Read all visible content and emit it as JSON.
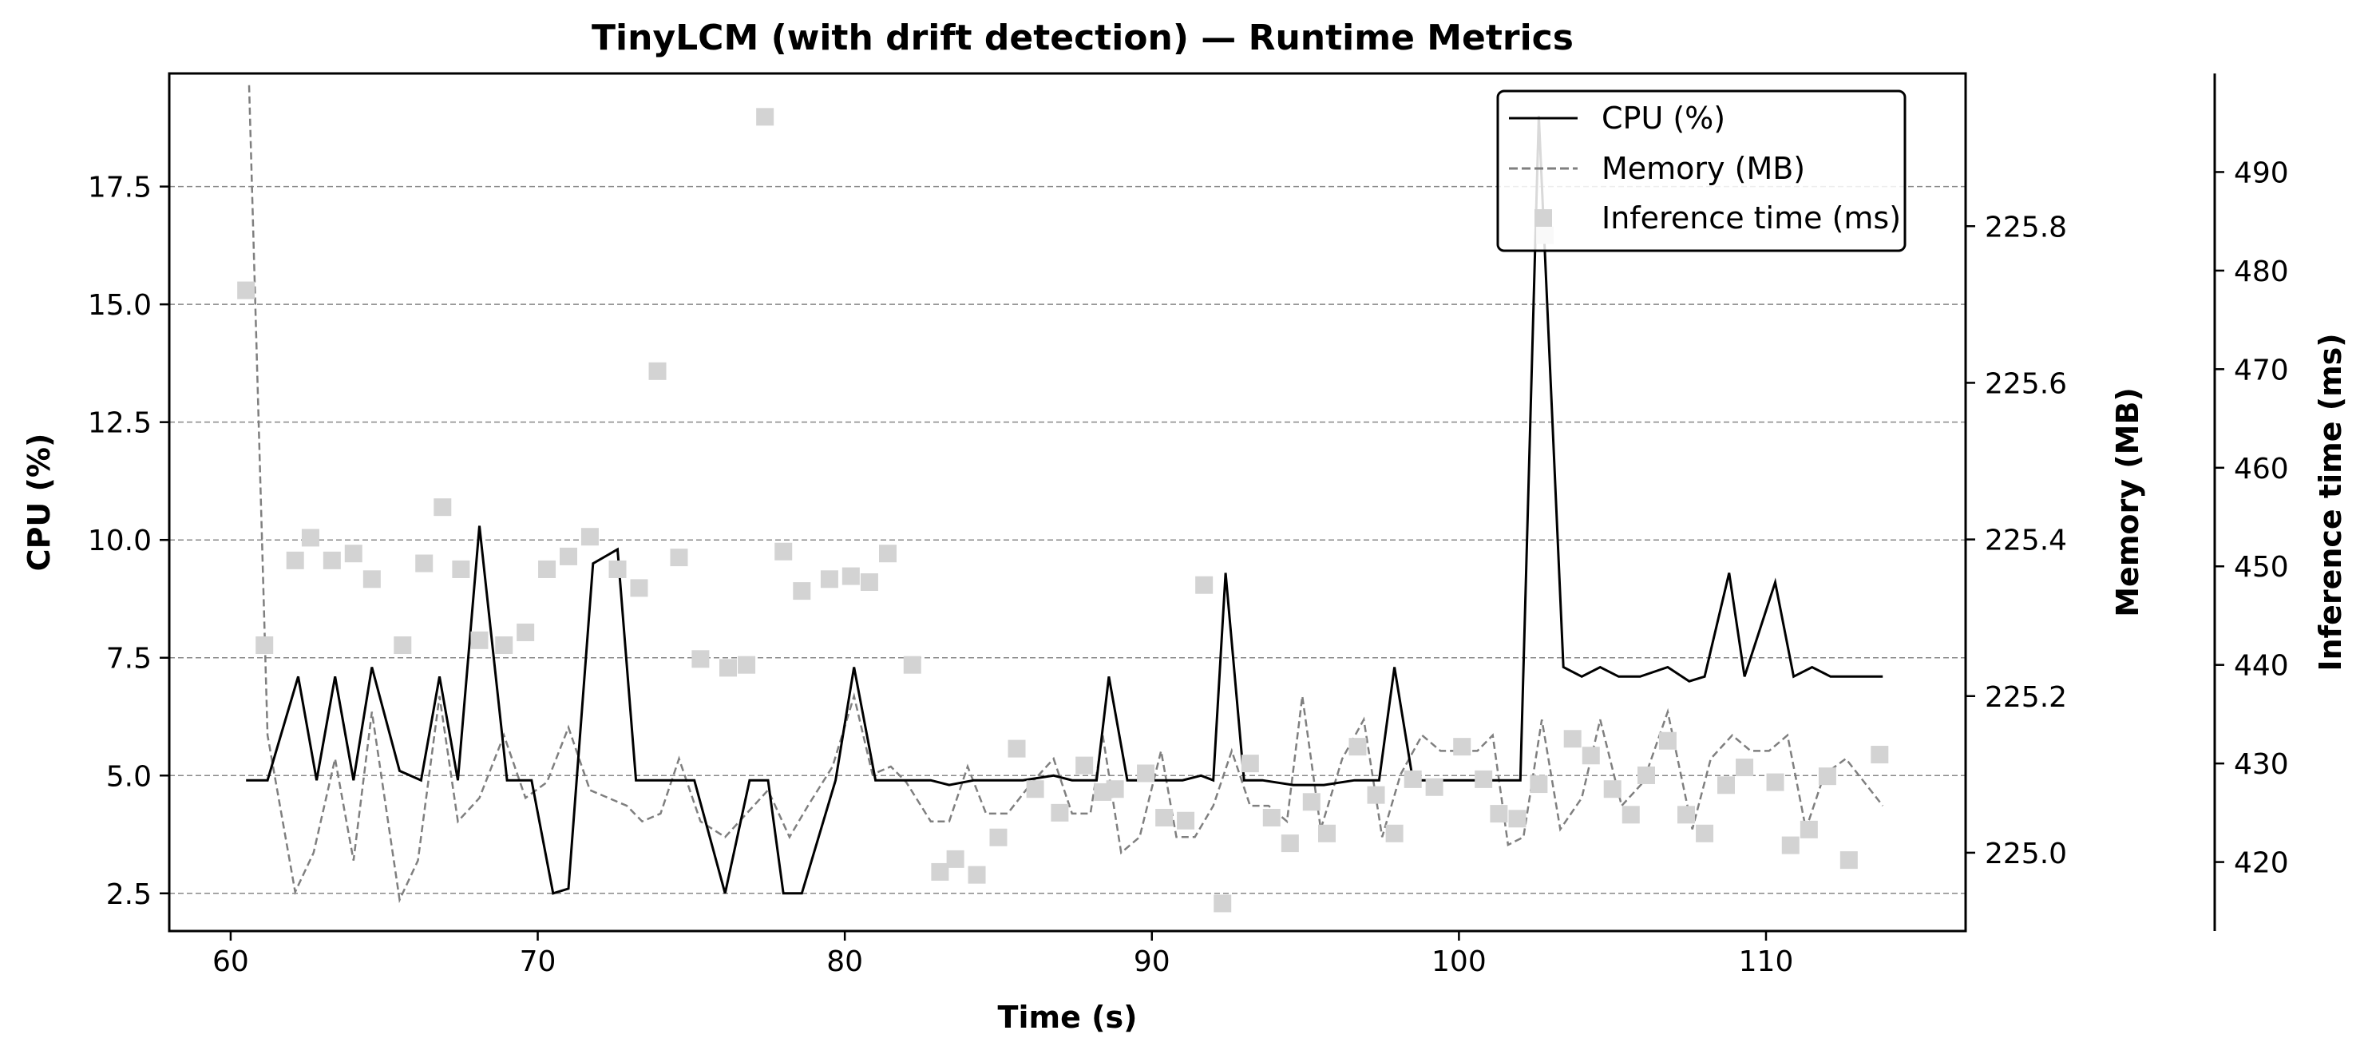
{
  "chart_data": {
    "type": "line",
    "title": "TinyLCM (with drift detection) — Runtime Metrics",
    "xlabel": "Time (s)",
    "xlim": [
      58.0,
      116.5
    ],
    "xticks": [
      60,
      70,
      80,
      90,
      100,
      110
    ],
    "grid": "horizontal dashed (CPU axis)",
    "legend_position": "top-right",
    "axes": {
      "cpu": {
        "label": "CPU (%)",
        "lim": [
          1.7,
          19.9
        ],
        "ticks": [
          "2.5",
          "5.0",
          "7.5",
          "10.0",
          "12.5",
          "15.0",
          "17.5"
        ],
        "tick_values": [
          2.5,
          5.0,
          7.5,
          10.0,
          12.5,
          15.0,
          17.5
        ],
        "side": "left"
      },
      "memory": {
        "label": "Memory (MB)",
        "lim": [
          224.9,
          225.995
        ],
        "ticks": [
          "225.0",
          "225.2",
          "225.4",
          "225.6",
          "225.8"
        ],
        "tick_values": [
          225.0,
          225.2,
          225.4,
          225.6,
          225.8
        ],
        "side": "right"
      },
      "inference": {
        "label": "Inference time (ms)",
        "lim": [
          413.0,
          500.0
        ],
        "ticks": [
          "420",
          "430",
          "440",
          "450",
          "460",
          "470",
          "480",
          "490"
        ],
        "tick_values": [
          420,
          430,
          440,
          450,
          460,
          470,
          480,
          490
        ],
        "side": "right-outer"
      }
    },
    "series": [
      {
        "name": "CPU (%)",
        "axis": "cpu",
        "style": "line",
        "color": "#000000",
        "points": [
          [
            60.5,
            4.9
          ],
          [
            61.2,
            4.9
          ],
          [
            62.2,
            7.1
          ],
          [
            62.8,
            4.9
          ],
          [
            63.4,
            7.1
          ],
          [
            64.0,
            4.9
          ],
          [
            64.6,
            7.3
          ],
          [
            65.5,
            5.1
          ],
          [
            66.2,
            4.9
          ],
          [
            66.8,
            7.1
          ],
          [
            67.4,
            4.9
          ],
          [
            68.1,
            10.3
          ],
          [
            69.0,
            4.9
          ],
          [
            69.8,
            4.9
          ],
          [
            70.5,
            2.5
          ],
          [
            71.0,
            2.6
          ],
          [
            71.8,
            9.5
          ],
          [
            72.6,
            9.8
          ],
          [
            73.2,
            4.9
          ],
          [
            73.7,
            4.9
          ],
          [
            74.5,
            4.9
          ],
          [
            75.1,
            4.9
          ],
          [
            76.1,
            2.5
          ],
          [
            76.9,
            4.9
          ],
          [
            77.5,
            4.9
          ],
          [
            78.0,
            2.5
          ],
          [
            78.6,
            2.5
          ],
          [
            79.7,
            4.9
          ],
          [
            80.3,
            7.3
          ],
          [
            81.0,
            4.9
          ],
          [
            82.0,
            4.9
          ],
          [
            82.8,
            4.9
          ],
          [
            83.4,
            4.8
          ],
          [
            84.2,
            4.9
          ],
          [
            85.0,
            4.9
          ],
          [
            85.8,
            4.9
          ],
          [
            86.8,
            5.0
          ],
          [
            87.4,
            4.9
          ],
          [
            88.2,
            4.9
          ],
          [
            88.6,
            7.1
          ],
          [
            89.2,
            4.9
          ],
          [
            90.0,
            4.9
          ],
          [
            91.0,
            4.9
          ],
          [
            91.6,
            5.0
          ],
          [
            92.0,
            4.9
          ],
          [
            92.4,
            9.3
          ],
          [
            93.0,
            4.9
          ],
          [
            93.6,
            4.9
          ],
          [
            94.6,
            4.8
          ],
          [
            95.6,
            4.8
          ],
          [
            96.6,
            4.9
          ],
          [
            97.4,
            4.9
          ],
          [
            97.9,
            7.3
          ],
          [
            98.5,
            4.9
          ],
          [
            99.5,
            4.9
          ],
          [
            100.5,
            4.9
          ],
          [
            101.3,
            4.9
          ],
          [
            102.0,
            4.9
          ],
          [
            102.6,
            19.0
          ],
          [
            103.4,
            7.3
          ],
          [
            104.0,
            7.1
          ],
          [
            104.6,
            7.3
          ],
          [
            105.2,
            7.1
          ],
          [
            105.9,
            7.1
          ],
          [
            106.8,
            7.3
          ],
          [
            107.5,
            7.0
          ],
          [
            108.0,
            7.1
          ],
          [
            108.8,
            9.3
          ],
          [
            109.3,
            7.1
          ],
          [
            110.3,
            9.1
          ],
          [
            110.9,
            7.1
          ],
          [
            111.5,
            7.3
          ],
          [
            112.1,
            7.1
          ],
          [
            113.0,
            7.1
          ],
          [
            113.8,
            7.1
          ]
        ]
      },
      {
        "name": "Memory (MB)",
        "axis": "memory",
        "style": "dashed-line",
        "color": "#7f7f7f",
        "points": [
          [
            60.6,
            225.98
          ],
          [
            61.2,
            225.15
          ],
          [
            62.1,
            224.95
          ],
          [
            62.7,
            225.0
          ],
          [
            63.4,
            225.12
          ],
          [
            64.0,
            224.99
          ],
          [
            64.6,
            225.18
          ],
          [
            65.5,
            224.94
          ],
          [
            66.1,
            224.99
          ],
          [
            66.8,
            225.2
          ],
          [
            67.4,
            225.04
          ],
          [
            68.1,
            225.07
          ],
          [
            68.9,
            225.15
          ],
          [
            69.6,
            225.07
          ],
          [
            70.3,
            225.09
          ],
          [
            71.0,
            225.16
          ],
          [
            71.7,
            225.08
          ],
          [
            72.3,
            225.07
          ],
          [
            72.9,
            225.06
          ],
          [
            73.4,
            225.04
          ],
          [
            74.0,
            225.05
          ],
          [
            74.6,
            225.12
          ],
          [
            75.3,
            225.04
          ],
          [
            76.1,
            225.02
          ],
          [
            76.8,
            225.05
          ],
          [
            77.5,
            225.08
          ],
          [
            78.2,
            225.02
          ],
          [
            78.8,
            225.06
          ],
          [
            79.6,
            225.11
          ],
          [
            80.3,
            225.2
          ],
          [
            80.9,
            225.1
          ],
          [
            81.5,
            225.11
          ],
          [
            82.0,
            225.09
          ],
          [
            82.8,
            225.04
          ],
          [
            83.4,
            225.04
          ],
          [
            84.0,
            225.11
          ],
          [
            84.6,
            225.05
          ],
          [
            85.3,
            225.05
          ],
          [
            86.1,
            225.09
          ],
          [
            86.8,
            225.12
          ],
          [
            87.4,
            225.05
          ],
          [
            88.0,
            225.05
          ],
          [
            88.4,
            225.15
          ],
          [
            89.0,
            225.0
          ],
          [
            89.6,
            225.02
          ],
          [
            90.3,
            225.13
          ],
          [
            90.8,
            225.02
          ],
          [
            91.4,
            225.02
          ],
          [
            92.0,
            225.06
          ],
          [
            92.6,
            225.13
          ],
          [
            93.2,
            225.06
          ],
          [
            93.8,
            225.06
          ],
          [
            94.4,
            225.04
          ],
          [
            94.9,
            225.2
          ],
          [
            95.5,
            225.03
          ],
          [
            96.2,
            225.12
          ],
          [
            96.9,
            225.17
          ],
          [
            97.5,
            225.02
          ],
          [
            98.1,
            225.1
          ],
          [
            98.8,
            225.15
          ],
          [
            99.4,
            225.13
          ],
          [
            100.0,
            225.13
          ],
          [
            100.6,
            225.13
          ],
          [
            101.1,
            225.15
          ],
          [
            101.6,
            225.01
          ],
          [
            102.1,
            225.02
          ],
          [
            102.7,
            225.17
          ],
          [
            103.3,
            225.03
          ],
          [
            104.0,
            225.07
          ],
          [
            104.6,
            225.17
          ],
          [
            105.3,
            225.06
          ],
          [
            106.0,
            225.09
          ],
          [
            106.8,
            225.18
          ],
          [
            107.6,
            225.03
          ],
          [
            108.2,
            225.12
          ],
          [
            108.9,
            225.15
          ],
          [
            109.5,
            225.13
          ],
          [
            110.1,
            225.13
          ],
          [
            110.7,
            225.15
          ],
          [
            111.3,
            225.03
          ],
          [
            111.9,
            225.1
          ],
          [
            112.6,
            225.12
          ],
          [
            113.8,
            225.06
          ]
        ]
      },
      {
        "name": "Inference time (ms)",
        "axis": "inference",
        "style": "square-markers",
        "color": "#d3d3d3",
        "points": [
          [
            60.5,
            478.0
          ],
          [
            61.1,
            442.0
          ],
          [
            62.1,
            450.6
          ],
          [
            62.6,
            452.9
          ],
          [
            63.3,
            450.6
          ],
          [
            64.0,
            451.3
          ],
          [
            64.6,
            448.7
          ],
          [
            65.6,
            442.0
          ],
          [
            66.3,
            450.3
          ],
          [
            66.9,
            456.0
          ],
          [
            67.5,
            449.7
          ],
          [
            68.1,
            442.5
          ],
          [
            68.9,
            442.0
          ],
          [
            69.6,
            443.3
          ],
          [
            70.3,
            449.7
          ],
          [
            71.0,
            451.0
          ],
          [
            71.7,
            453.0
          ],
          [
            72.6,
            449.7
          ],
          [
            73.3,
            447.8
          ],
          [
            73.9,
            469.8
          ],
          [
            74.6,
            450.9
          ],
          [
            75.3,
            440.6
          ],
          [
            76.2,
            439.7
          ],
          [
            76.8,
            440.0
          ],
          [
            77.4,
            495.6
          ],
          [
            78.0,
            451.5
          ],
          [
            78.6,
            447.5
          ],
          [
            79.5,
            448.7
          ],
          [
            80.2,
            449.0
          ],
          [
            80.8,
            448.4
          ],
          [
            81.4,
            451.3
          ],
          [
            82.2,
            440.0
          ],
          [
            83.1,
            419.0
          ],
          [
            83.6,
            420.3
          ],
          [
            84.3,
            418.7
          ],
          [
            85.0,
            422.5
          ],
          [
            85.6,
            431.5
          ],
          [
            86.2,
            427.4
          ],
          [
            87.0,
            425.0
          ],
          [
            87.8,
            429.8
          ],
          [
            88.4,
            427.1
          ],
          [
            88.8,
            427.4
          ],
          [
            89.8,
            429.0
          ],
          [
            90.4,
            424.5
          ],
          [
            91.1,
            424.2
          ],
          [
            91.7,
            448.1
          ],
          [
            92.3,
            415.8
          ],
          [
            93.2,
            430.0
          ],
          [
            93.9,
            424.5
          ],
          [
            94.5,
            421.9
          ],
          [
            95.2,
            426.1
          ],
          [
            95.7,
            422.9
          ],
          [
            96.7,
            431.7
          ],
          [
            97.3,
            426.8
          ],
          [
            97.9,
            422.9
          ],
          [
            98.5,
            428.4
          ],
          [
            99.2,
            427.6
          ],
          [
            100.1,
            431.7
          ],
          [
            100.8,
            428.4
          ],
          [
            101.3,
            424.9
          ],
          [
            101.9,
            424.4
          ],
          [
            102.6,
            427.9
          ],
          [
            102.8,
            483.6
          ],
          [
            103.7,
            432.5
          ],
          [
            104.3,
            430.8
          ],
          [
            105.0,
            427.4
          ],
          [
            105.6,
            424.8
          ],
          [
            106.1,
            428.8
          ],
          [
            106.8,
            432.3
          ],
          [
            107.4,
            424.8
          ],
          [
            108.0,
            422.9
          ],
          [
            108.7,
            427.8
          ],
          [
            109.3,
            429.6
          ],
          [
            110.3,
            428.1
          ],
          [
            110.8,
            421.7
          ],
          [
            111.4,
            423.3
          ],
          [
            112.0,
            428.7
          ],
          [
            112.7,
            420.2
          ],
          [
            113.7,
            430.9
          ]
        ]
      }
    ]
  }
}
